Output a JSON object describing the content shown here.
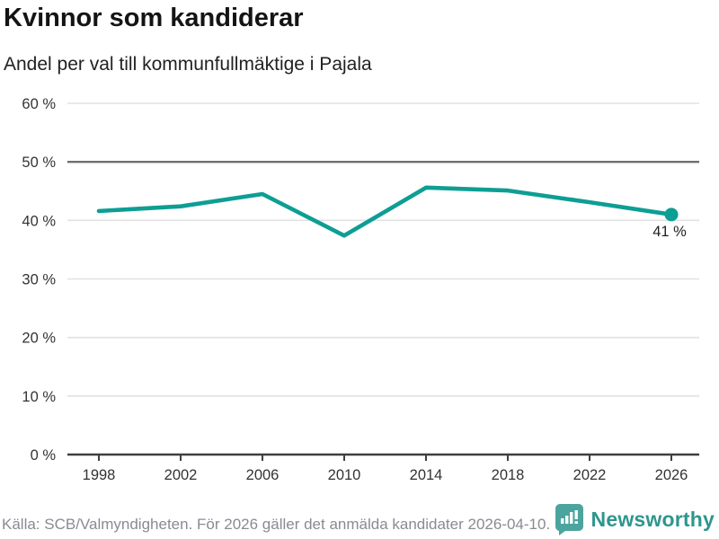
{
  "header": {
    "title": "Kvinnor som kandiderar",
    "subtitle": "Andel per val till kommunfullmäktige i Pajala"
  },
  "chart_data": {
    "type": "line",
    "title": "Kvinnor som kandiderar",
    "subtitle": "Andel per val till kommunfullmäktige i Pajala",
    "categories": [
      "1998",
      "2002",
      "2006",
      "2010",
      "2014",
      "2018",
      "2022",
      "2026"
    ],
    "values": [
      41.6,
      42.4,
      44.5,
      37.4,
      45.6,
      45.1,
      43.1,
      41.0
    ],
    "unit": "%",
    "ylim": [
      0,
      60
    ],
    "yticks": [
      0,
      10,
      20,
      30,
      40,
      50,
      60
    ],
    "ytick_suffix": " %",
    "reference_line": 50,
    "end_label": "41 %",
    "grid": true,
    "legend_position": "none",
    "colors": {
      "line": "#0d9e94",
      "end_dot": "#0d9e94",
      "grid": "#e2e2e2",
      "reference": "#6f6f6f",
      "axis": "#3f3f3f",
      "tick_label": "#333333",
      "end_label_text": "#1f1f1f"
    }
  },
  "footer": {
    "source": "Källa: SCB/Valmyndigheten. För 2026 gäller det anmälda kandidater 2026-04-10.",
    "brand": "Newsworthy",
    "brand_color": "#2e968e",
    "brand_icon": "bar-chart-bubble-icon",
    "brand_icon_color": "#4ba59e"
  }
}
